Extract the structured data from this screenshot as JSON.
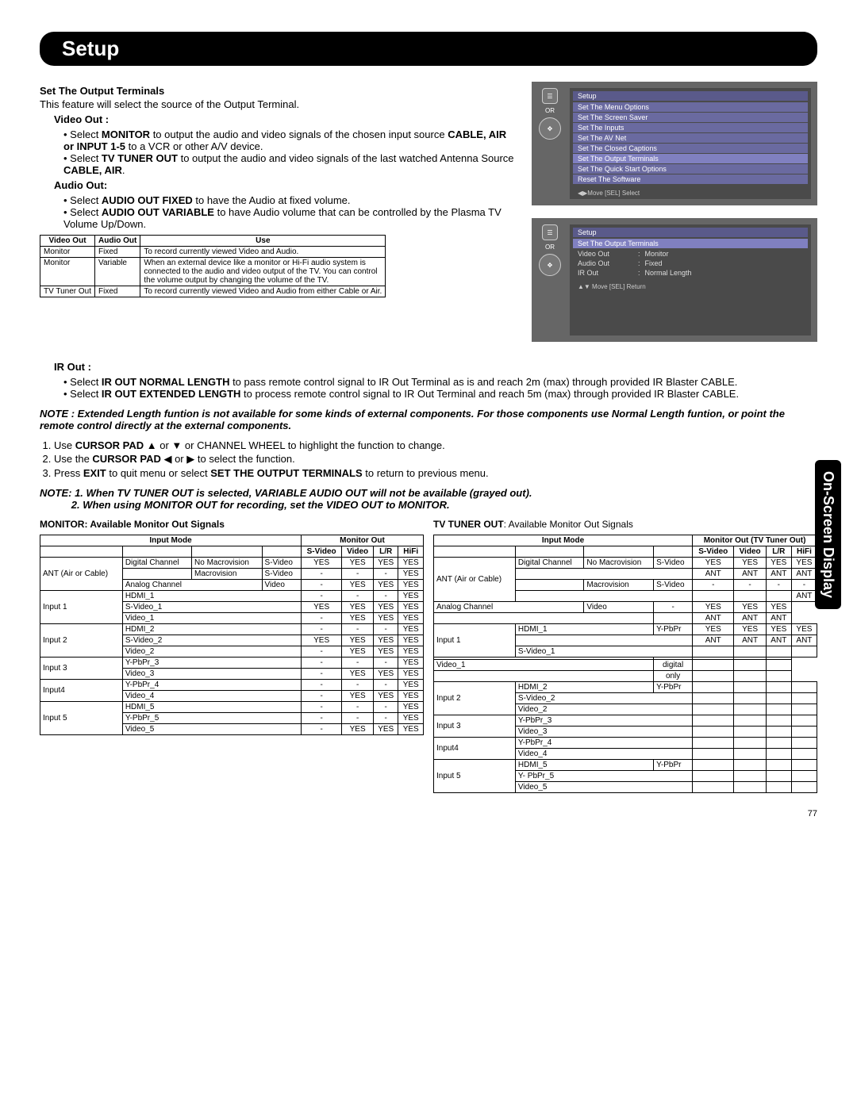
{
  "page_title": "Setup",
  "side_tab": "On-Screen Display",
  "page_number": "77",
  "section_title": "Set The Output Terminals",
  "intro": "This feature will select the source of the Output Terminal.",
  "video_out_label": "Video Out :",
  "video_out_b1a": "Select ",
  "video_out_b1b": "MONITOR",
  "video_out_b1c": " to output the audio and video signals of the chosen input source ",
  "video_out_b1d": "CABLE, AIR or INPUT 1-5",
  "video_out_b1e": " to a VCR or other A/V device.",
  "video_out_b2a": "Select ",
  "video_out_b2b": "TV TUNER OUT",
  "video_out_b2c": " to output the audio and video signals of the last watched Antenna Source ",
  "video_out_b2d": "CABLE, AIR",
  "video_out_b2e": ".",
  "audio_out_label": "Audio Out:",
  "audio_out_b1a": "Select ",
  "audio_out_b1b": "AUDIO OUT FIXED",
  "audio_out_b1c": " to have the Audio at fixed volume.",
  "audio_out_b2a": "Select ",
  "audio_out_b2b": "AUDIO OUT VARIABLE",
  "audio_out_b2c": " to have Audio volume that can be controlled by the Plasma TV Volume Up/Down.",
  "use_table": {
    "headers": [
      "Video Out",
      "Audio Out",
      "Use"
    ],
    "rows": [
      [
        "Monitor",
        "Fixed",
        "To record currently viewed Video and Audio."
      ],
      [
        "Monitor",
        "Variable",
        "When an external device like a monitor or Hi-Fi audio system is connected to the audio and video output of the TV. You can control the volume output by changing the volume of the TV."
      ],
      [
        "TV Tuner Out",
        "Fixed",
        "To record currently viewed Video and Audio from either Cable or Air."
      ]
    ]
  },
  "ir_out_label": "IR Out :",
  "ir_out_b1a": "Select ",
  "ir_out_b1b": "IR OUT NORMAL LENGTH",
  "ir_out_b1c": " to pass remote control signal to IR Out Terminal as is and reach 2m (max) through provided IR Blaster CABLE.",
  "ir_out_b2a": "Select ",
  "ir_out_b2b": "IR OUT EXTENDED LENGTH",
  "ir_out_b2c": " to process remote control signal to IR Out Terminal and reach 5m (max) through provided IR Blaster CABLE.",
  "note1": "NOTE : Extended Length funtion is not available for some kinds of external components. For those components use Normal Length funtion, or point the remote control directly at the external components.",
  "step1a": "Use ",
  "step1b": "CURSOR PAD",
  "step1c": " ▲ or ▼ or  CHANNEL WHEEL to highlight the function to change.",
  "step2a": "Use the ",
  "step2b": "CURSOR PAD",
  "step2c": " ◀ or ▶ to select the function.",
  "step3a": "Press ",
  "step3b": "EXIT",
  "step3c": " to quit menu or select ",
  "step3d": "SET THE OUTPUT TERMINALS",
  "step3e": "  to return to previous menu.",
  "note2_label": "NOTE:",
  "note2_1a": "1.   When ",
  "note2_1b": "TV TUNER OUT",
  "note2_1c": " is selected, ",
  "note2_1d": "VARIABLE AUDIO OUT",
  "note2_1e": " will not be available (grayed out).",
  "note2_2": "2.   When using MONITOR OUT for recording, set the VIDEO OUT to MONITOR.",
  "osd1": {
    "or": "OR",
    "title": "Setup",
    "items": [
      "Set The Menu Options",
      "Set The Screen Saver",
      "Set The Inputs",
      "Set  The AV Net",
      "Set The Closed Captions",
      "Set The Output Terminals",
      "Set The Quick Start Options",
      "Reset The Software"
    ],
    "hl_index": 5,
    "foot": "◀▶Move    [SEL] Select"
  },
  "osd2": {
    "or": "OR",
    "title": "Setup",
    "sub": "Set  The Output Terminals",
    "kv": [
      {
        "k": "Video Out",
        "sep": ":",
        "v": "Monitor"
      },
      {
        "k": "Audio Out",
        "sep": ":",
        "v": "Fixed"
      },
      {
        "k": "IR Out",
        "sep": ":",
        "v": "Normal Length"
      }
    ],
    "foot": "▲▼ Move     [SEL] Return"
  },
  "monitor_label": "MONITOR:  Available Monitor Out Signals",
  "tvtuner_label_a": "TV TUNER OUT",
  "tvtuner_label_b": ":  Available Monitor Out Signals",
  "sig_headers_input": "Input Mode",
  "sig_headers_out1": "Monitor Out",
  "sig_headers_out2": "Monitor Out (TV Tuner Out)",
  "sig_cols": [
    "S-Video",
    "Video",
    "L/R",
    "HiFi"
  ],
  "sig_monitor_rows": [
    {
      "g": "ANT (Air or Cable)",
      "span": 3,
      "a": "Digital Channel",
      "b": "No Macrovision",
      "c": "S-Video",
      "v": [
        "YES",
        "YES",
        "YES",
        "YES"
      ]
    },
    {
      "a": "",
      "b": "Macrovision",
      "c": "S-Video",
      "v": [
        "-",
        "-",
        "-",
        "YES"
      ]
    },
    {
      "a": "Analog Channel",
      "b": "",
      "c": "Video",
      "v": [
        "-",
        "YES",
        "YES",
        "YES"
      ]
    },
    {
      "g": "Input 1",
      "span": 3,
      "a": "HDMI_1",
      "b": "",
      "c": "",
      "v": [
        "-",
        "-",
        "-",
        "YES"
      ]
    },
    {
      "a": "S-Video_1",
      "b": "",
      "c": "",
      "v": [
        "YES",
        "YES",
        "YES",
        "YES"
      ]
    },
    {
      "a": "Video_1",
      "b": "",
      "c": "",
      "v": [
        "-",
        "YES",
        "YES",
        "YES"
      ]
    },
    {
      "g": "Input 2",
      "span": 3,
      "a": "HDMI_2",
      "b": "",
      "c": "",
      "v": [
        "-",
        "-",
        "-",
        "YES"
      ]
    },
    {
      "a": "S-Video_2",
      "b": "",
      "c": "",
      "v": [
        "YES",
        "YES",
        "YES",
        "YES"
      ]
    },
    {
      "a": "Video_2",
      "b": "",
      "c": "",
      "v": [
        "-",
        "YES",
        "YES",
        "YES"
      ]
    },
    {
      "g": "Input 3",
      "span": 2,
      "a": "Y-PbPr_3",
      "b": "",
      "c": "",
      "v": [
        "-",
        "-",
        "-",
        "YES"
      ]
    },
    {
      "a": "Video_3",
      "b": "",
      "c": "",
      "v": [
        "-",
        "YES",
        "YES",
        "YES"
      ]
    },
    {
      "g": "Input4",
      "span": 2,
      "a": "Y-PbPr_4",
      "b": "",
      "c": "",
      "v": [
        "-",
        "-",
        "-",
        "YES"
      ]
    },
    {
      "a": "Video_4",
      "b": "",
      "c": "",
      "v": [
        "-",
        "YES",
        "YES",
        "YES"
      ]
    },
    {
      "g": "Input 5",
      "span": 3,
      "a": "HDMI_5",
      "b": "",
      "c": "",
      "v": [
        "-",
        "-",
        "-",
        "YES"
      ]
    },
    {
      "a": "Y-PbPr_5",
      "b": "",
      "c": "",
      "v": [
        "-",
        "-",
        "-",
        "YES"
      ]
    },
    {
      "a": "Video_5",
      "b": "",
      "c": "",
      "v": [
        "-",
        "YES",
        "YES",
        "YES"
      ]
    }
  ],
  "sig_tvtuner_rows": [
    {
      "g": "ANT (Air or Cable)",
      "span": 4,
      "a": "Digital Channel",
      "b": "No Macrovision",
      "c": "S-Video",
      "v": [
        "YES",
        "YES",
        "YES",
        "YES"
      ],
      "v2": [
        "ANT",
        "ANT",
        "ANT",
        "ANT"
      ]
    },
    {
      "a": "",
      "b": "Macrovision",
      "c": "S-Video",
      "v": [
        "-",
        "-",
        "-",
        "-"
      ],
      "v2": [
        "",
        "",
        "",
        "ANT"
      ]
    },
    {
      "a": "Analog Channel",
      "b": "",
      "c": "Video",
      "v": [
        "-",
        "YES",
        "YES",
        "YES"
      ],
      "v2": [
        "",
        "ANT",
        "ANT",
        "ANT"
      ]
    },
    {
      "g": "Input 1",
      "span": 3,
      "a": "HDMI_1",
      "b": "",
      "c": "Y-PbPr",
      "v": [
        "YES",
        "YES",
        "YES",
        "YES"
      ],
      "v2": [
        "ANT",
        "ANT",
        "ANT",
        "ANT"
      ]
    },
    {
      "a": "S-Video_1",
      "b": "",
      "c": "",
      "v": [
        "",
        "",
        "",
        ""
      ],
      "v2": [
        "",
        "",
        "",
        ""
      ]
    },
    {
      "a": "Video_1",
      "b": "",
      "c": "",
      "v": [
        "digital",
        "",
        "",
        ""
      ],
      "v2": [
        "only",
        "",
        "",
        ""
      ]
    },
    {
      "g": "Input 2",
      "span": 3,
      "a": "HDMI_2",
      "b": "",
      "c": "Y-PbPr",
      "v": [
        "",
        "",
        "",
        ""
      ]
    },
    {
      "a": "S-Video_2",
      "b": "",
      "c": "",
      "v": [
        "",
        "",
        "",
        ""
      ]
    },
    {
      "a": "Video_2",
      "b": "",
      "c": "",
      "v": [
        "",
        "",
        "",
        ""
      ]
    },
    {
      "g": "Input 3",
      "span": 2,
      "a": "Y-PbPr_3",
      "b": "",
      "c": "",
      "v": [
        "",
        "",
        "",
        ""
      ]
    },
    {
      "a": "Video_3",
      "b": "",
      "c": "",
      "v": [
        "",
        "",
        "",
        ""
      ]
    },
    {
      "g": "Input4",
      "span": 2,
      "a": "Y-PbPr_4",
      "b": "",
      "c": "",
      "v": [
        "",
        "",
        "",
        ""
      ]
    },
    {
      "a": "Video_4",
      "b": "",
      "c": "",
      "v": [
        "",
        "",
        "",
        ""
      ]
    },
    {
      "g": "Input 5",
      "span": 3,
      "a": "HDMI_5",
      "b": "",
      "c": "Y-PbPr",
      "v": [
        "",
        "",
        "",
        ""
      ]
    },
    {
      "a": "Y- PbPr_5",
      "b": "",
      "c": "",
      "v": [
        "",
        "",
        "",
        ""
      ]
    },
    {
      "a": "Video_5",
      "b": "",
      "c": "",
      "v": [
        "",
        "",
        "",
        ""
      ]
    }
  ]
}
